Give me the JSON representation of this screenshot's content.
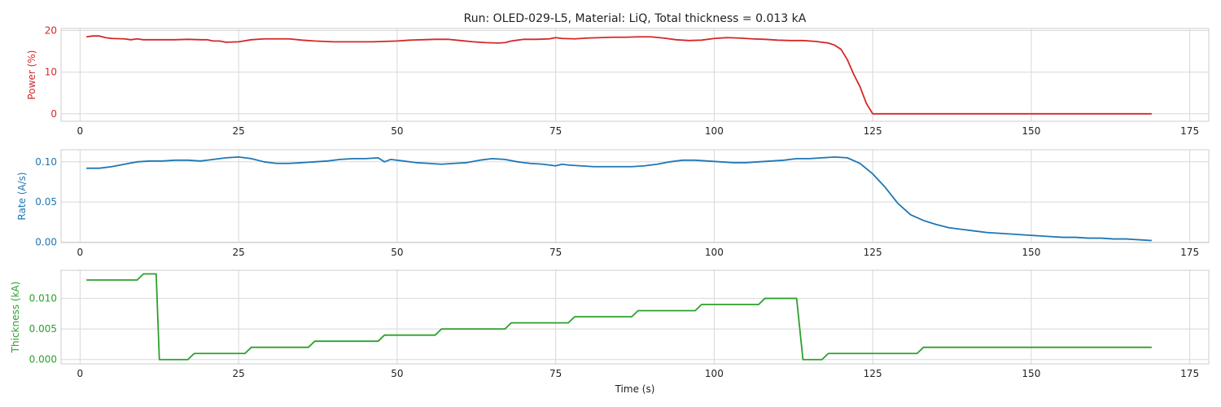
{
  "chart_data": {
    "type": "line",
    "title": "Run: OLED-029-L5, Material: LiQ, Total thickness = 0.013 kA",
    "xlabel": "Time (s)",
    "xlim": [
      -3,
      178
    ],
    "xticks": [
      0,
      25,
      50,
      75,
      100,
      125,
      150,
      175
    ],
    "xtick_labels": [
      "0",
      "25",
      "50",
      "75",
      "100",
      "125",
      "150",
      "175"
    ],
    "grid": true,
    "panels": [
      {
        "ylabel": "Power (%)",
        "color": "#d62728",
        "ylim": [
          -1.8,
          20.5
        ],
        "yticks": [
          0,
          10,
          20
        ],
        "ytick_labels": [
          "0",
          "10",
          "20"
        ],
        "series": [
          {
            "x": [
              1,
              2,
              3,
              4,
              5,
              7,
              8,
              9,
              10,
              12,
              15,
              17,
              19,
              20,
              21,
              22,
              23,
              25,
              27,
              29,
              31,
              33,
              35,
              37,
              40,
              42,
              44,
              46,
              48,
              50,
              52,
              54,
              56,
              58,
              60,
              62,
              64,
              66,
              67,
              68,
              70,
              72,
              74,
              75,
              76,
              78,
              80,
              82,
              84,
              86,
              88,
              90,
              92,
              94,
              96,
              98,
              100,
              102,
              104,
              106,
              108,
              110,
              112,
              114,
              116,
              117,
              118,
              119,
              120,
              121,
              122,
              123,
              124,
              125,
              127,
              130,
              140,
              150,
              160,
              169
            ],
            "y": [
              18.5,
              18.7,
              18.7,
              18.3,
              18.1,
              18.0,
              17.8,
              18.0,
              17.8,
              17.8,
              17.8,
              17.9,
              17.8,
              17.8,
              17.5,
              17.5,
              17.2,
              17.3,
              17.8,
              18.0,
              18.0,
              18.0,
              17.7,
              17.5,
              17.3,
              17.3,
              17.3,
              17.3,
              17.4,
              17.5,
              17.7,
              17.8,
              17.9,
              17.9,
              17.6,
              17.3,
              17.1,
              17.0,
              17.1,
              17.5,
              17.9,
              17.9,
              18.0,
              18.3,
              18.1,
              18.0,
              18.2,
              18.3,
              18.4,
              18.4,
              18.5,
              18.5,
              18.2,
              17.8,
              17.6,
              17.7,
              18.1,
              18.3,
              18.2,
              18.0,
              17.9,
              17.7,
              17.6,
              17.6,
              17.4,
              17.2,
              17.0,
              16.5,
              15.5,
              13.0,
              9.5,
              6.5,
              2.5,
              0.0,
              0.0,
              0.0,
              0.0,
              0.0,
              0.0,
              0.0
            ]
          }
        ]
      },
      {
        "ylabel": "Rate (A/s)",
        "color": "#1f77b4",
        "ylim": [
          -0.0005,
          0.115
        ],
        "yticks": [
          0.0,
          0.05,
          0.1
        ],
        "ytick_labels": [
          "0.00",
          "0.05",
          "0.10"
        ],
        "series": [
          {
            "x": [
              1,
              3,
              5,
              7,
              9,
              11,
              13,
              15,
              17,
              19,
              21,
              23,
              25,
              27,
              29,
              31,
              33,
              35,
              37,
              39,
              41,
              43,
              45,
              47,
              48,
              49,
              51,
              53,
              55,
              57,
              59,
              61,
              63,
              65,
              67,
              69,
              71,
              73,
              75,
              76,
              77,
              79,
              81,
              83,
              85,
              87,
              89,
              91,
              93,
              95,
              97,
              99,
              101,
              103,
              105,
              107,
              109,
              111,
              113,
              115,
              117,
              119,
              121,
              123,
              125,
              127,
              129,
              131,
              133,
              135,
              137,
              139,
              141,
              143,
              145,
              147,
              149,
              151,
              153,
              155,
              157,
              159,
              161,
              163,
              165,
              167,
              169
            ],
            "y": [
              0.092,
              0.092,
              0.094,
              0.097,
              0.1,
              0.101,
              0.101,
              0.102,
              0.102,
              0.101,
              0.103,
              0.105,
              0.106,
              0.104,
              0.1,
              0.098,
              0.098,
              0.099,
              0.1,
              0.101,
              0.103,
              0.104,
              0.104,
              0.105,
              0.1,
              0.103,
              0.101,
              0.099,
              0.098,
              0.097,
              0.098,
              0.099,
              0.102,
              0.104,
              0.103,
              0.1,
              0.098,
              0.097,
              0.095,
              0.097,
              0.096,
              0.095,
              0.094,
              0.094,
              0.094,
              0.094,
              0.095,
              0.097,
              0.1,
              0.102,
              0.102,
              0.101,
              0.1,
              0.099,
              0.099,
              0.1,
              0.101,
              0.102,
              0.104,
              0.104,
              0.105,
              0.106,
              0.105,
              0.098,
              0.085,
              0.068,
              0.048,
              0.034,
              0.027,
              0.022,
              0.018,
              0.016,
              0.014,
              0.012,
              0.011,
              0.01,
              0.009,
              0.008,
              0.007,
              0.006,
              0.006,
              0.005,
              0.005,
              0.004,
              0.004,
              0.003,
              0.002
            ]
          }
        ]
      },
      {
        "ylabel": "Thickness (kA)",
        "color": "#2ca02c",
        "ylim": [
          -0.0007,
          0.0146
        ],
        "yticks": [
          0.0,
          0.005,
          0.01
        ],
        "ytick_labels": [
          "0.000",
          "0.005",
          "0.010"
        ],
        "series": [
          {
            "x": [
              1,
              9,
              10,
              12,
              12.5,
              17,
              18,
              26,
              27,
              36,
              37,
              47,
              48,
              56,
              57,
              67,
              68,
              77,
              78,
              87,
              88,
              97,
              98,
              107,
              108,
              113,
              114,
              117,
              118,
              132,
              133,
              169
            ],
            "y": [
              0.013,
              0.013,
              0.014,
              0.014,
              0.0,
              0.0,
              0.001,
              0.001,
              0.002,
              0.002,
              0.003,
              0.003,
              0.004,
              0.004,
              0.005,
              0.005,
              0.006,
              0.006,
              0.007,
              0.007,
              0.008,
              0.008,
              0.009,
              0.009,
              0.01,
              0.01,
              0.0,
              0.0,
              0.001,
              0.001,
              0.002,
              0.002
            ]
          }
        ]
      }
    ]
  }
}
